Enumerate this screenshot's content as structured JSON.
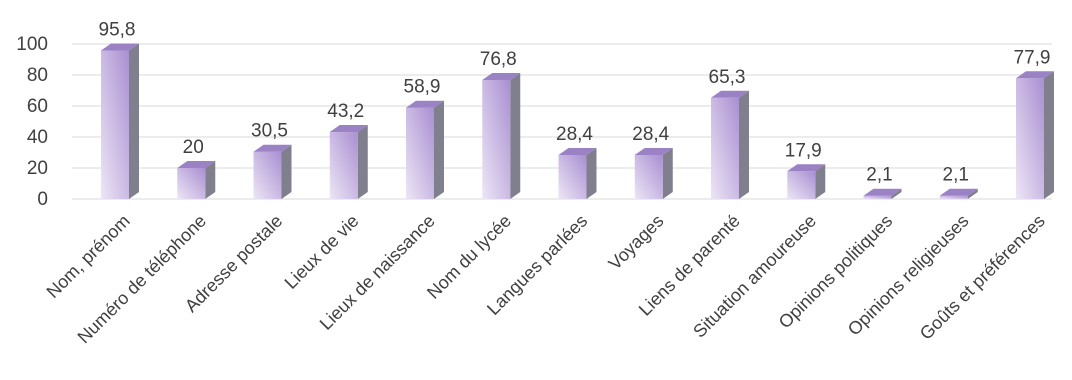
{
  "chart_data": {
    "type": "bar",
    "categories": [
      "Nom, prénom",
      "Numéro de téléphone",
      "Adresse postale",
      "Lieux de vie",
      "Lieux de naissance",
      "Nom du lycée",
      "Langues parlées",
      "Voyages",
      "Liens de parenté",
      "Situation amoureuse",
      "Opinions politiques",
      "Opinions religieuses",
      "Goûts et préférences"
    ],
    "values": [
      95.8,
      20,
      30.5,
      43.2,
      58.9,
      76.8,
      28.4,
      28.4,
      65.3,
      17.9,
      2.1,
      2.1,
      77.9
    ],
    "value_labels": [
      "95,8",
      "20",
      "30,5",
      "43,2",
      "58,9",
      "76,8",
      "28,4",
      "28,4",
      "65,3",
      "17,9",
      "2,1",
      "2,1",
      "77,9"
    ],
    "y_ticks": [
      0,
      20,
      40,
      60,
      80,
      100
    ],
    "ylim": [
      0,
      100
    ],
    "grid": true,
    "legend": "none",
    "style": "3d-column",
    "colors": {
      "bar_front_light": "#ede6f6",
      "bar_front_dark": "#a98fd1",
      "bar_side": "#7f7f8e",
      "bar_top": "#9a82c4"
    }
  }
}
